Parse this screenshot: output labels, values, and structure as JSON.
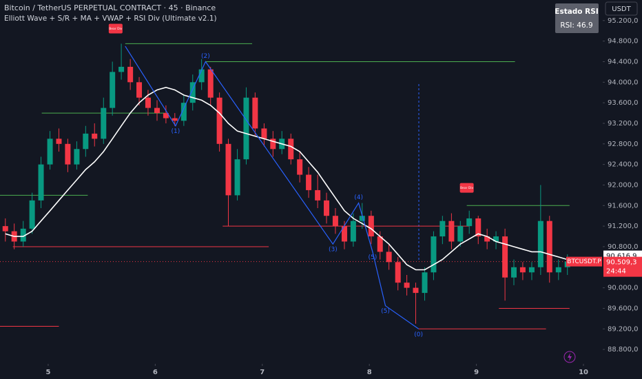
{
  "chart_data": {
    "type": "candlestick",
    "title": "Bitcoin / TetherUS PERPETUAL CONTRACT · 45 · Binance",
    "subtitle": "Elliott Wave + S/R + MA + VWAP + RSI Div (Ultimate v2.1)",
    "currency": "USDT",
    "up_color": "#089981",
    "down_color": "#f23645",
    "xlim": [
      4.55,
      10.18
    ],
    "xticks": [
      5,
      6,
      7,
      8,
      9,
      10
    ],
    "ylim": [
      88520,
      95600
    ],
    "yticks": [
      {
        "value": 95200,
        "label": "95.200,0"
      },
      {
        "value": 94800,
        "label": "94.800,0"
      },
      {
        "value": 94400,
        "label": "94.400,0"
      },
      {
        "value": 94000,
        "label": "94.000,0"
      },
      {
        "value": 93600,
        "label": "93.600,0"
      },
      {
        "value": 93200,
        "label": "93.200,0"
      },
      {
        "value": 92800,
        "label": "92.800,0"
      },
      {
        "value": 92400,
        "label": "92.400,0"
      },
      {
        "value": 92000,
        "label": "92.000,0"
      },
      {
        "value": 91600,
        "label": "91.600,0"
      },
      {
        "value": 91200,
        "label": "91.200,0"
      },
      {
        "value": 90800,
        "label": "90.800,0"
      },
      {
        "value": 90000,
        "label": "90.000,0"
      },
      {
        "value": 89600,
        "label": "89.600,0"
      },
      {
        "value": 89200,
        "label": "89.200,0"
      },
      {
        "value": 88800,
        "label": "88.800,0"
      }
    ],
    "x": [
      4.6,
      4.683,
      4.767,
      4.85,
      4.933,
      5.017,
      5.1,
      5.183,
      5.267,
      5.35,
      5.433,
      5.517,
      5.6,
      5.683,
      5.767,
      5.85,
      5.933,
      6.017,
      6.1,
      6.183,
      6.267,
      6.35,
      6.433,
      6.517,
      6.6,
      6.683,
      6.767,
      6.85,
      6.933,
      7.017,
      7.1,
      7.183,
      7.267,
      7.35,
      7.433,
      7.517,
      7.6,
      7.683,
      7.767,
      7.85,
      7.933,
      8.017,
      8.1,
      8.183,
      8.267,
      8.35,
      8.433,
      8.517,
      8.6,
      8.683,
      8.767,
      8.85,
      8.933,
      9.017,
      9.1,
      9.183,
      9.267,
      9.35,
      9.433,
      9.517,
      9.6,
      9.683,
      9.767,
      9.85
    ],
    "open": [
      91200,
      91100,
      90900,
      91150,
      91700,
      92400,
      92900,
      92800,
      92400,
      92700,
      93000,
      92900,
      93500,
      94200,
      94300,
      94000,
      93700,
      93500,
      93400,
      93300,
      93250,
      93600,
      94000,
      94250,
      93700,
      92800,
      91800,
      92500,
      93700,
      93100,
      92900,
      92700,
      92900,
      92500,
      92200,
      91900,
      91700,
      91400,
      91200,
      90900,
      91300,
      91400,
      91000,
      90700,
      90500,
      90100,
      90000,
      89900,
      90300,
      91000,
      91300,
      90900,
      91200,
      91350,
      91000,
      90900,
      91000,
      90200,
      90400,
      90300,
      90400,
      91300,
      90300,
      90400
    ],
    "high": [
      91350,
      91250,
      91300,
      91850,
      92550,
      93050,
      93100,
      92900,
      92850,
      93150,
      93200,
      93700,
      94400,
      94750,
      94450,
      94100,
      93850,
      93650,
      93550,
      93400,
      93750,
      94150,
      94450,
      94300,
      93800,
      92900,
      92700,
      93900,
      93800,
      93200,
      93050,
      93050,
      93000,
      92650,
      92350,
      92200,
      91850,
      91550,
      91300,
      91450,
      91650,
      91500,
      91100,
      90850,
      90600,
      90250,
      90100,
      90400,
      91100,
      91400,
      91450,
      91300,
      91500,
      91400,
      91150,
      91100,
      91150,
      90550,
      90500,
      90500,
      92000,
      91400,
      90550,
      90650
    ],
    "low": [
      90900,
      90750,
      90800,
      91050,
      91550,
      92300,
      92650,
      92250,
      92300,
      92550,
      92750,
      92800,
      93350,
      94050,
      93850,
      93550,
      93350,
      93250,
      93200,
      93150,
      93150,
      93450,
      93850,
      93550,
      92650,
      91200,
      91700,
      92400,
      92950,
      92750,
      92550,
      92600,
      92400,
      92050,
      91750,
      91550,
      91250,
      91050,
      90750,
      90800,
      91150,
      90850,
      90550,
      90350,
      89950,
      89850,
      89300,
      89750,
      90150,
      90850,
      90750,
      90800,
      91050,
      90850,
      90750,
      90750,
      89750,
      90050,
      90150,
      90150,
      90250,
      90100,
      90150,
      90250
    ],
    "close": [
      91100,
      90900,
      91150,
      91700,
      92400,
      92900,
      92800,
      92400,
      92700,
      93000,
      92900,
      93500,
      94200,
      94300,
      94000,
      93700,
      93500,
      93400,
      93300,
      93250,
      93600,
      94000,
      94250,
      93700,
      92800,
      91800,
      92500,
      93700,
      93100,
      92900,
      92700,
      92900,
      92500,
      92200,
      91900,
      91700,
      91400,
      91200,
      90900,
      91300,
      91400,
      91000,
      90700,
      90500,
      90100,
      90000,
      89900,
      90300,
      91000,
      91300,
      90900,
      91200,
      91350,
      91000,
      90900,
      91000,
      90200,
      90400,
      90300,
      90400,
      91300,
      90300,
      90400,
      90509.3
    ],
    "ma": {
      "color": "#ffffff",
      "values": [
        91050,
        91000,
        91000,
        91100,
        91300,
        91500,
        91700,
        91900,
        92100,
        92300,
        92450,
        92650,
        92900,
        93150,
        93400,
        93600,
        93750,
        93850,
        93900,
        93850,
        93750,
        93700,
        93650,
        93550,
        93400,
        93200,
        93050,
        93000,
        92950,
        92900,
        92850,
        92800,
        92750,
        92650,
        92450,
        92250,
        92000,
        91750,
        91500,
        91350,
        91250,
        91150,
        91000,
        90850,
        90650,
        90450,
        90350,
        90350,
        90450,
        90550,
        90700,
        90850,
        90950,
        91050,
        91000,
        90900,
        90850,
        90800,
        90750,
        90700,
        90700,
        90650,
        90600,
        90550
      ]
    },
    "levels": [
      {
        "value": 94750,
        "x": [
          5.72,
          6.905
        ],
        "color": "#4caf50"
      },
      {
        "value": 94400,
        "x": [
          6.47,
          9.36
        ],
        "color": "#4caf50"
      },
      {
        "value": 93400,
        "x": [
          4.94,
          6.09
        ],
        "color": "#4caf50"
      },
      {
        "value": 91800,
        "x": [
          4.55,
          5.37
        ],
        "color": "#4caf50"
      },
      {
        "value": 91600,
        "x": [
          8.91,
          9.87
        ],
        "color": "#4caf50"
      },
      {
        "value": 91200,
        "x": [
          6.63,
          8.93
        ],
        "color": "#f23645"
      },
      {
        "value": 90800,
        "x": [
          4.67,
          7.06
        ],
        "color": "#f23645"
      },
      {
        "value": 89600,
        "x": [
          9.21,
          9.87
        ],
        "color": "#f23645"
      },
      {
        "value": 89200,
        "x": [
          8.46,
          9.65
        ],
        "color": "#f23645"
      },
      {
        "value": 89250,
        "x": [
          4.55,
          5.1
        ],
        "color": "#f23645"
      }
    ],
    "wave": {
      "color": "#2962ff",
      "points": [
        {
          "x": 5.72,
          "y": 94700
        },
        {
          "x": 6.19,
          "y": 93150,
          "label": "(1)"
        },
        {
          "x": 6.47,
          "y": 94400,
          "label": "(2)"
        },
        {
          "x": 7.66,
          "y": 90850,
          "label": "(3)"
        },
        {
          "x": 7.9,
          "y": 91650,
          "label": "(4)"
        },
        {
          "x": 8.03,
          "y": 90700,
          "label": "(5)"
        },
        {
          "x": 8.15,
          "y": 89650,
          "label": "(5)"
        },
        {
          "x": 8.46,
          "y": 89200,
          "label": "(0)"
        }
      ]
    },
    "divergences": [
      {
        "text": "Bear Div",
        "x": 5.63,
        "y": 94950
      },
      {
        "text": "Bear Div",
        "x": 8.91,
        "y": 91850
      }
    ],
    "rsi_box": {
      "title": "Estado RSI",
      "text": "RSI: 46.9"
    },
    "marker_price": {
      "value": 90616.9,
      "label": "90.616,9"
    },
    "last_price": {
      "value": 90509.3,
      "label": "90.509,3"
    },
    "symbol": "BTCUSDT.P",
    "countdown": "24:44"
  }
}
